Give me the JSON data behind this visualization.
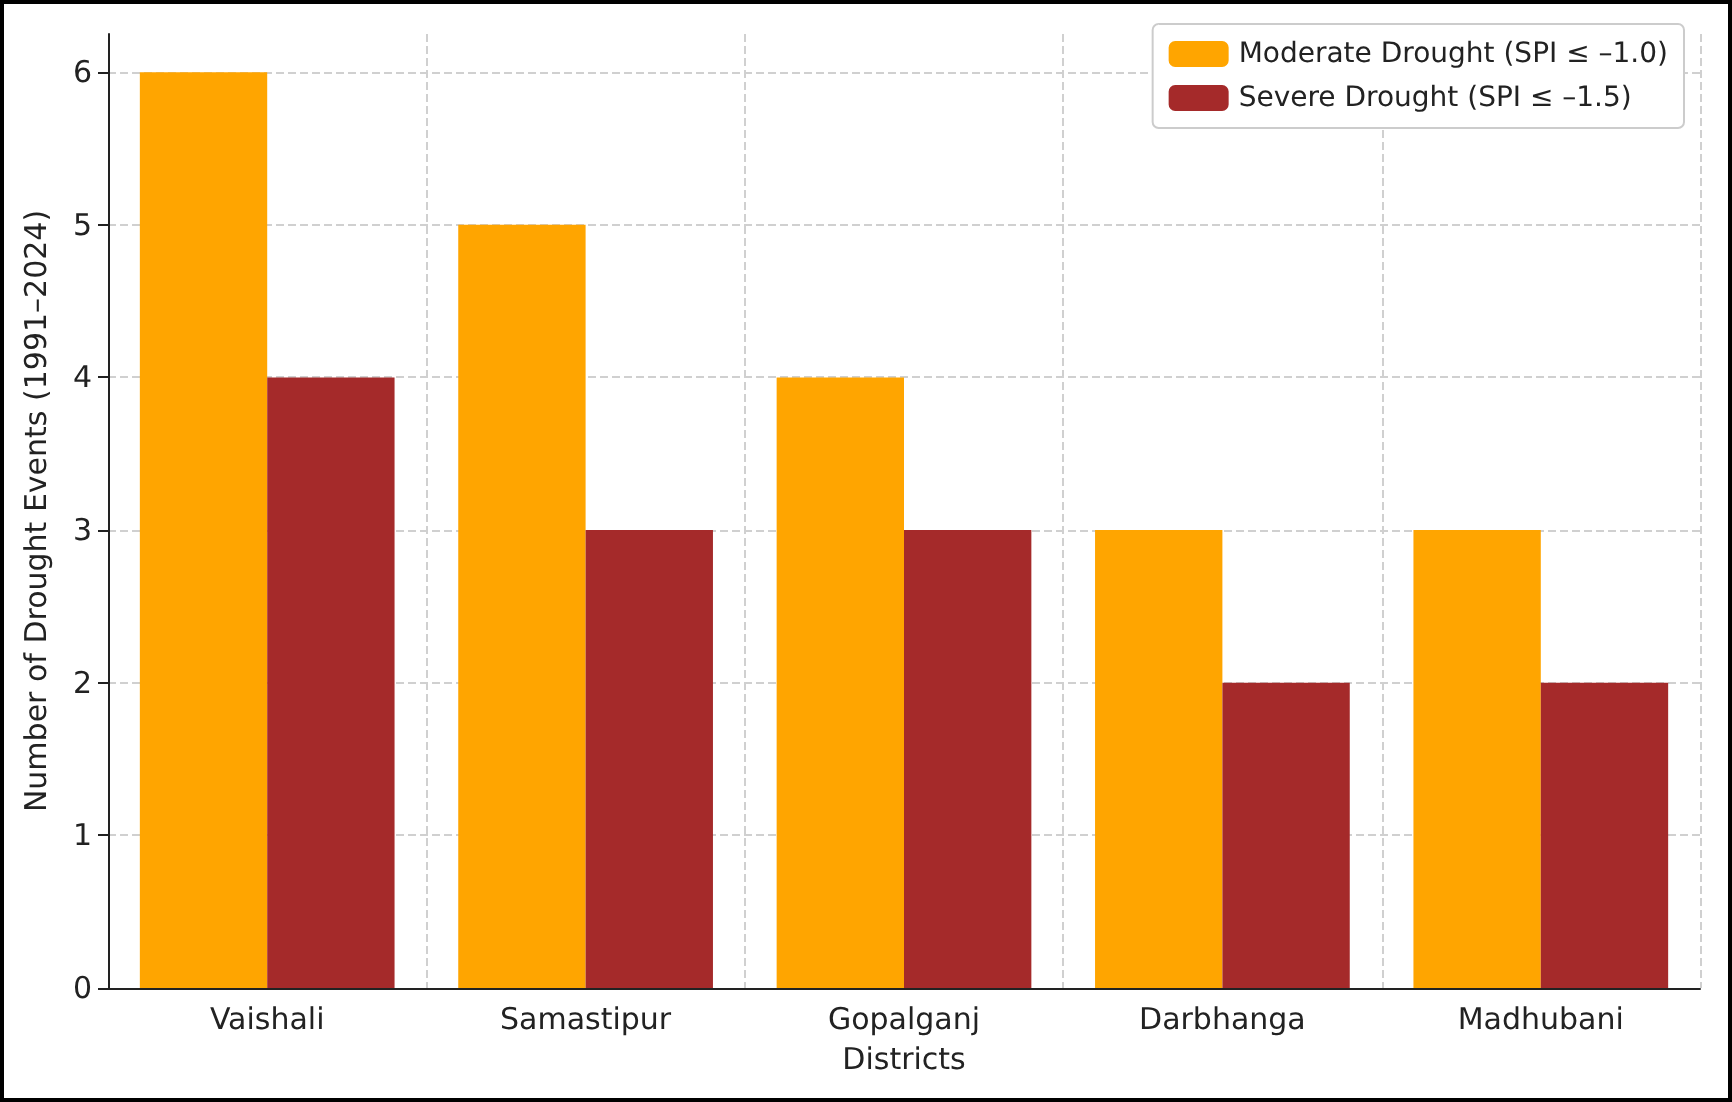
{
  "chart_data": {
    "type": "bar",
    "xlabel": "Districts",
    "ylabel": "Number of Drought Events (1991–2024)",
    "categories": [
      "Vaishali",
      "Samastipur",
      "Gopalganj",
      "Darbhanga",
      "Madhubani"
    ],
    "series": [
      {
        "name": "Moderate Drought (SPI ≤ –1.0)",
        "color": "#ffa500",
        "values": [
          6,
          5,
          4,
          3,
          3
        ]
      },
      {
        "name": "Severe Drought (SPI ≤ –1.5)",
        "color": "#a52a2a",
        "values": [
          4,
          3,
          3,
          2,
          2
        ]
      }
    ],
    "ylim": [
      0,
      6.25
    ],
    "yticks": [
      0,
      1,
      2,
      3,
      4,
      5,
      6
    ],
    "grid": true,
    "legend": "top right"
  }
}
